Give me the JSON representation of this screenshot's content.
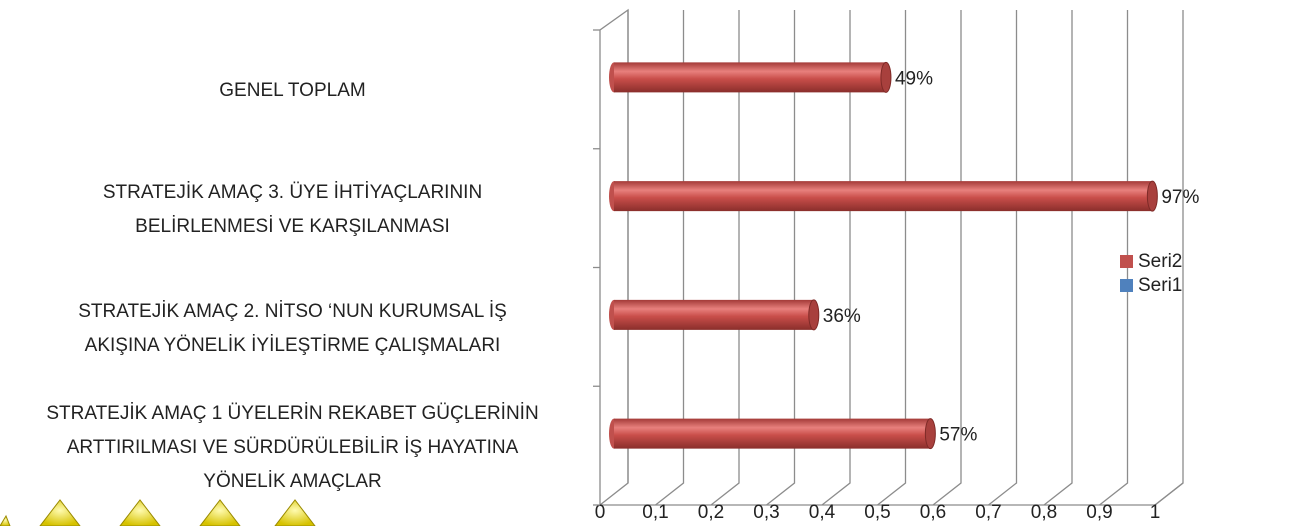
{
  "chart_data": {
    "type": "bar3d-horizontal",
    "categories": [
      "STRATEJİK AMAÇ 1 ÜYELERİN REKABET GÜÇLERİNİN\nARTTIRILMASI VE SÜRDÜRÜLEBİLİR İŞ HAYATINA\nYÖNELİK AMAÇLAR",
      "STRATEJİK AMAÇ 2. NİTSO ‘NUN KURUMSAL İŞ\nAKIŞINA YÖNELİK İYİLEŞTİRME ÇALIŞMALARI",
      "STRATEJİK AMAÇ 3. ÜYE İHTİYAÇLARININ\nBELİRLENMESİ VE KARŞILANMASI",
      "GENEL TOPLAM"
    ],
    "series": [
      {
        "name": "Seri2",
        "color": "#c0504d",
        "values": [
          0.57,
          0.36,
          0.97,
          0.49
        ],
        "value_labels": [
          "57%",
          "36%",
          "97%",
          "49%"
        ]
      },
      {
        "name": "Seri1",
        "color": "#4f81bd",
        "values": [
          null,
          null,
          null,
          null
        ]
      }
    ],
    "xlim": [
      0,
      1
    ],
    "xticks": [
      0,
      {
        "value": 0.1,
        "label": "0,1"
      },
      {
        "value": 0.2,
        "label": "0,2"
      },
      {
        "value": 0.3,
        "label": "0,3"
      },
      {
        "value": 0.4,
        "label": "0,4"
      },
      {
        "value": 0.5,
        "label": "0,5"
      },
      {
        "value": 0.6,
        "label": "0,6"
      },
      {
        "value": 0.7,
        "label": "0,7"
      },
      {
        "value": 0.8,
        "label": "0,8"
      },
      {
        "value": 0.9,
        "label": "0,9"
      },
      1
    ],
    "grid": true,
    "legend": "right"
  }
}
